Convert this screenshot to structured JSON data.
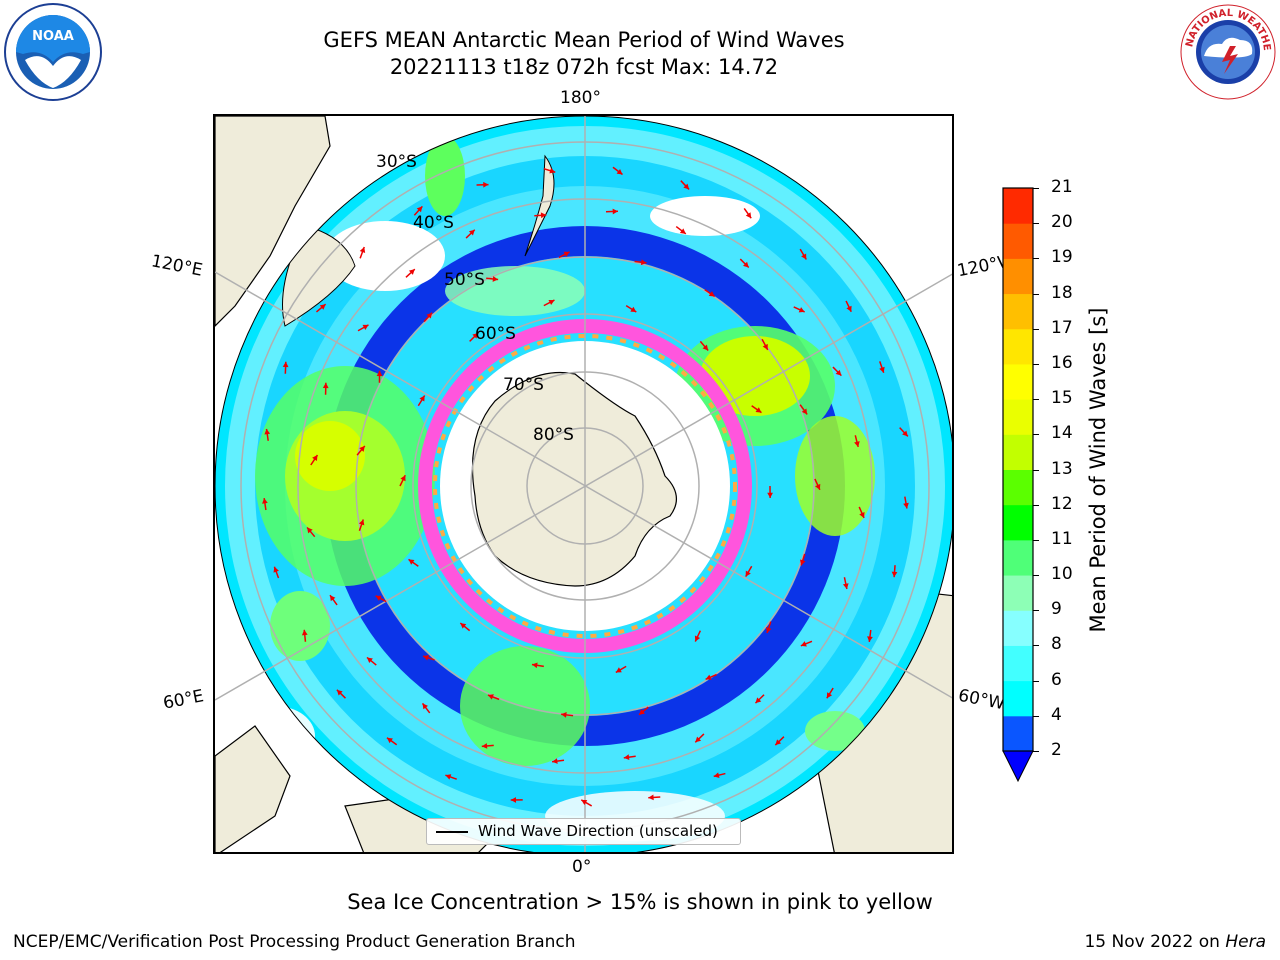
{
  "header": {
    "title_line1": "GEFS MEAN Antarctic Mean Period of Wind Waves",
    "title_line2": "20221113 t18z 072h fcst   Max: 14.72"
  },
  "logos": {
    "left": {
      "icon": "noaa-logo-icon",
      "text": "NOAA"
    },
    "right": {
      "icon": "nws-logo-icon",
      "text": "NATIONAL WEATHER SERVICE"
    }
  },
  "map": {
    "lon_labels": [
      "180°",
      "120°E",
      "120°W",
      "60°E",
      "60°W",
      "0°"
    ],
    "lat_labels": [
      "30°S",
      "40°S",
      "50°S",
      "60°S",
      "70°S",
      "80°S"
    ],
    "legend": {
      "label": "Wind Wave Direction (unscaled)"
    }
  },
  "colorbar": {
    "label": "Mean Period of Wind Waves [s]",
    "ticks": [
      "2",
      "4",
      "6",
      "8",
      "9",
      "10",
      "11",
      "12",
      "13",
      "14",
      "15",
      "16",
      "17",
      "18",
      "19",
      "20",
      "21"
    ],
    "colors": [
      "#0a56ff",
      "#00ffff",
      "#42ffff",
      "#86ffff",
      "#8dffb6",
      "#4fff78",
      "#00ff00",
      "#5bff00",
      "#c2ff00",
      "#eaff00",
      "#ffff00",
      "#ffe600",
      "#ffbf00",
      "#ff8f00",
      "#ff5a00",
      "#ff2a00"
    ],
    "extend_color": "#0000ff"
  },
  "caption": "Sea Ice Concentration > 15% is shown in pink to yellow",
  "footer": {
    "left": "NCEP/EMC/Verification Post Processing Product Generation Branch",
    "right_date": "15 Nov 2022 on ",
    "right_machine": "Hera"
  },
  "colors": {
    "land": "#efecda",
    "ice_pink": "#ff55dd",
    "ice_orange": "#ffaa44",
    "arrow": "#ee0000",
    "grid": "#b0b0b0"
  }
}
